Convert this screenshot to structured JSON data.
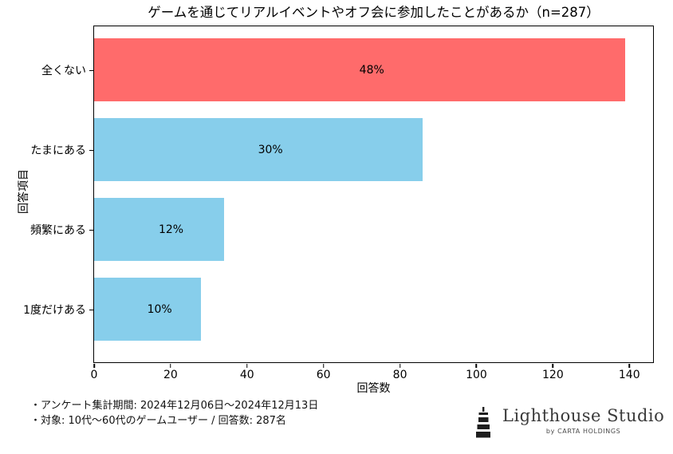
{
  "chart_data": {
    "type": "bar",
    "orientation": "horizontal",
    "title": "ゲームを通じてリアルイベントやオフ会に参加したことがあるか（n=287）",
    "categories": [
      "全くない",
      "たまにある",
      "頻繁にある",
      "1度だけある"
    ],
    "values": [
      139,
      86,
      34,
      28
    ],
    "percent_labels": [
      "48%",
      "30%",
      "12%",
      "10%"
    ],
    "bar_colors": [
      "#ff6b6b",
      "#87ceeb",
      "#87ceeb",
      "#87ceeb"
    ],
    "xlabel": "回答数",
    "ylabel": "回答項目",
    "xticks": [
      0,
      20,
      40,
      60,
      80,
      100,
      120,
      140
    ],
    "xlim": [
      0,
      146.2
    ],
    "grid": false,
    "legend": "none",
    "n_total": 287
  },
  "footnotes": [
    "・アンケート集計期間: 2024年12月06日〜2024年12月13日",
    "・対象: 10代〜60代のゲームユーザー / 回答数: 287名"
  ],
  "logo": {
    "brand": "Lighthouse Studio",
    "byline": "by CARTA HOLDINGS",
    "icon": "lighthouse-icon",
    "color": "#2b2b2b"
  }
}
